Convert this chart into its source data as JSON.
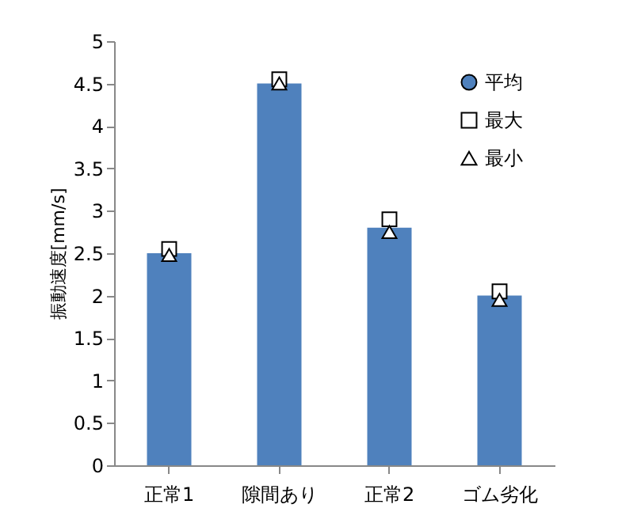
{
  "chart_data": {
    "type": "bar",
    "ylabel": "振動速度[mm/s]",
    "categories": [
      "正常1",
      "隙間あり",
      "正常2",
      "ゴム劣化"
    ],
    "series": [
      {
        "name": "平均",
        "color": "#4f81bd",
        "values": [
          2.5,
          4.5,
          2.8,
          2.0
        ]
      },
      {
        "name": "最大",
        "type": "scatter",
        "marker": "square",
        "color": "#ffffff",
        "values": [
          2.55,
          4.55,
          2.9,
          2.05
        ]
      },
      {
        "name": "最小",
        "type": "scatter",
        "marker": "triangle",
        "color": "#ffffff",
        "values": [
          2.48,
          4.5,
          2.75,
          1.95
        ]
      }
    ],
    "ylim": [
      0,
      5
    ],
    "yticks": [
      0,
      0.5,
      1,
      1.5,
      2,
      2.5,
      3,
      3.5,
      4,
      4.5,
      5
    ],
    "grid": false,
    "legend": "top right"
  }
}
